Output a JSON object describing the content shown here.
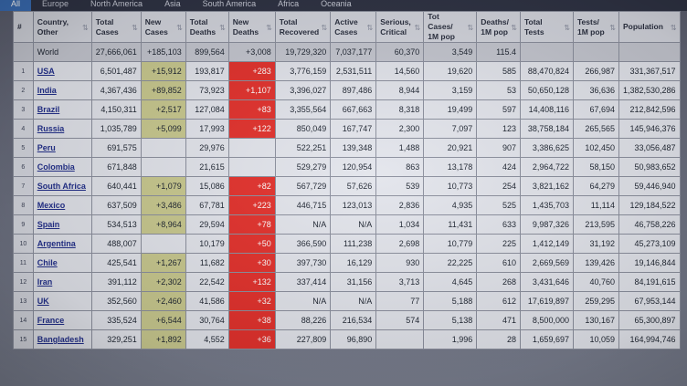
{
  "tabs": [
    "All",
    "Europe",
    "North America",
    "Asia",
    "South America",
    "Africa",
    "Oceania"
  ],
  "headers": {
    "num": "#",
    "country": "Country, Other",
    "total_cases": "Total Cases",
    "new_cases": "New Cases",
    "total_deaths": "Total Deaths",
    "new_deaths": "New Deaths",
    "total_recovered": "Total Recovered",
    "active_cases": "Active Cases",
    "serious": "Serious, Critical",
    "cases_per_1m": "Tot Cases/ 1M pop",
    "deaths_per_1m": "Deaths/ 1M pop",
    "total_tests": "Total Tests",
    "tests_per_1m": "Tests/ 1M pop",
    "population": "Population"
  },
  "world": {
    "country": "World",
    "total_cases": "27,666,061",
    "new_cases": "+185,103",
    "total_deaths": "899,564",
    "new_deaths": "+3,008",
    "total_recovered": "19,729,320",
    "active_cases": "7,037,177",
    "serious": "60,370",
    "cases_per_1m": "3,549",
    "deaths_per_1m": "115.4",
    "total_tests": "",
    "tests_per_1m": "",
    "population": ""
  },
  "rows": [
    {
      "num": "1",
      "country": "USA",
      "total_cases": "6,501,487",
      "new_cases": "+15,912",
      "total_deaths": "193,817",
      "new_deaths": "+283",
      "total_recovered": "3,776,159",
      "active_cases": "2,531,511",
      "serious": "14,560",
      "cases_per_1m": "19,620",
      "deaths_per_1m": "585",
      "total_tests": "88,470,824",
      "tests_per_1m": "266,987",
      "population": "331,367,517"
    },
    {
      "num": "2",
      "country": "India",
      "total_cases": "4,367,436",
      "new_cases": "+89,852",
      "total_deaths": "73,923",
      "new_deaths": "+1,107",
      "total_recovered": "3,396,027",
      "active_cases": "897,486",
      "serious": "8,944",
      "cases_per_1m": "3,159",
      "deaths_per_1m": "53",
      "total_tests": "50,650,128",
      "tests_per_1m": "36,636",
      "population": "1,382,530,286"
    },
    {
      "num": "3",
      "country": "Brazil",
      "total_cases": "4,150,311",
      "new_cases": "+2,517",
      "total_deaths": "127,084",
      "new_deaths": "+83",
      "total_recovered": "3,355,564",
      "active_cases": "667,663",
      "serious": "8,318",
      "cases_per_1m": "19,499",
      "deaths_per_1m": "597",
      "total_tests": "14,408,116",
      "tests_per_1m": "67,694",
      "population": "212,842,596"
    },
    {
      "num": "4",
      "country": "Russia",
      "total_cases": "1,035,789",
      "new_cases": "+5,099",
      "total_deaths": "17,993",
      "new_deaths": "+122",
      "total_recovered": "850,049",
      "active_cases": "167,747",
      "serious": "2,300",
      "cases_per_1m": "7,097",
      "deaths_per_1m": "123",
      "total_tests": "38,758,184",
      "tests_per_1m": "265,565",
      "population": "145,946,376"
    },
    {
      "num": "5",
      "country": "Peru",
      "total_cases": "691,575",
      "new_cases": "",
      "total_deaths": "29,976",
      "new_deaths": "",
      "total_recovered": "522,251",
      "active_cases": "139,348",
      "serious": "1,488",
      "cases_per_1m": "20,921",
      "deaths_per_1m": "907",
      "total_tests": "3,386,625",
      "tests_per_1m": "102,450",
      "population": "33,056,487"
    },
    {
      "num": "6",
      "country": "Colombia",
      "total_cases": "671,848",
      "new_cases": "",
      "total_deaths": "21,615",
      "new_deaths": "",
      "total_recovered": "529,279",
      "active_cases": "120,954",
      "serious": "863",
      "cases_per_1m": "13,178",
      "deaths_per_1m": "424",
      "total_tests": "2,964,722",
      "tests_per_1m": "58,150",
      "population": "50,983,652"
    },
    {
      "num": "7",
      "country": "South Africa",
      "total_cases": "640,441",
      "new_cases": "+1,079",
      "total_deaths": "15,086",
      "new_deaths": "+82",
      "total_recovered": "567,729",
      "active_cases": "57,626",
      "serious": "539",
      "cases_per_1m": "10,773",
      "deaths_per_1m": "254",
      "total_tests": "3,821,162",
      "tests_per_1m": "64,279",
      "population": "59,446,940"
    },
    {
      "num": "8",
      "country": "Mexico",
      "total_cases": "637,509",
      "new_cases": "+3,486",
      "total_deaths": "67,781",
      "new_deaths": "+223",
      "total_recovered": "446,715",
      "active_cases": "123,013",
      "serious": "2,836",
      "cases_per_1m": "4,935",
      "deaths_per_1m": "525",
      "total_tests": "1,435,703",
      "tests_per_1m": "11,114",
      "population": "129,184,522"
    },
    {
      "num": "9",
      "country": "Spain",
      "total_cases": "534,513",
      "new_cases": "+8,964",
      "total_deaths": "29,594",
      "new_deaths": "+78",
      "total_recovered": "N/A",
      "active_cases": "N/A",
      "serious": "1,034",
      "cases_per_1m": "11,431",
      "deaths_per_1m": "633",
      "total_tests": "9,987,326",
      "tests_per_1m": "213,595",
      "population": "46,758,226"
    },
    {
      "num": "10",
      "country": "Argentina",
      "total_cases": "488,007",
      "new_cases": "",
      "total_deaths": "10,179",
      "new_deaths": "+50",
      "total_recovered": "366,590",
      "active_cases": "111,238",
      "serious": "2,698",
      "cases_per_1m": "10,779",
      "deaths_per_1m": "225",
      "total_tests": "1,412,149",
      "tests_per_1m": "31,192",
      "population": "45,273,109"
    },
    {
      "num": "11",
      "country": "Chile",
      "total_cases": "425,541",
      "new_cases": "+1,267",
      "total_deaths": "11,682",
      "new_deaths": "+30",
      "total_recovered": "397,730",
      "active_cases": "16,129",
      "serious": "930",
      "cases_per_1m": "22,225",
      "deaths_per_1m": "610",
      "total_tests": "2,669,569",
      "tests_per_1m": "139,426",
      "population": "19,146,844"
    },
    {
      "num": "12",
      "country": "Iran",
      "total_cases": "391,112",
      "new_cases": "+2,302",
      "total_deaths": "22,542",
      "new_deaths": "+132",
      "total_recovered": "337,414",
      "active_cases": "31,156",
      "serious": "3,713",
      "cases_per_1m": "4,645",
      "deaths_per_1m": "268",
      "total_tests": "3,431,646",
      "tests_per_1m": "40,760",
      "population": "84,191,615"
    },
    {
      "num": "13",
      "country": "UK",
      "total_cases": "352,560",
      "new_cases": "+2,460",
      "total_deaths": "41,586",
      "new_deaths": "+32",
      "total_recovered": "N/A",
      "active_cases": "N/A",
      "serious": "77",
      "cases_per_1m": "5,188",
      "deaths_per_1m": "612",
      "total_tests": "17,619,897",
      "tests_per_1m": "259,295",
      "population": "67,953,144"
    },
    {
      "num": "14",
      "country": "France",
      "total_cases": "335,524",
      "new_cases": "+6,544",
      "total_deaths": "30,764",
      "new_deaths": "+38",
      "total_recovered": "88,226",
      "active_cases": "216,534",
      "serious": "574",
      "cases_per_1m": "5,138",
      "deaths_per_1m": "471",
      "total_tests": "8,500,000",
      "tests_per_1m": "130,167",
      "population": "65,300,897"
    },
    {
      "num": "15",
      "country": "Bangladesh",
      "total_cases": "329,251",
      "new_cases": "+1,892",
      "total_deaths": "4,552",
      "new_deaths": "+36",
      "total_recovered": "227,809",
      "active_cases": "96,890",
      "serious": "",
      "cases_per_1m": "1,996",
      "deaths_per_1m": "28",
      "total_tests": "1,659,697",
      "tests_per_1m": "10,059",
      "population": "164,994,746"
    }
  ],
  "colors": {
    "new_cases_bg": "#c9c98f",
    "new_deaths_bg": "#e3312c",
    "header_bg": "#d4d6de",
    "cell_bg": "#e3e5ec",
    "tab_active": "#3b6fb8"
  },
  "icons": {
    "sort": "sort-arrows-icon"
  }
}
